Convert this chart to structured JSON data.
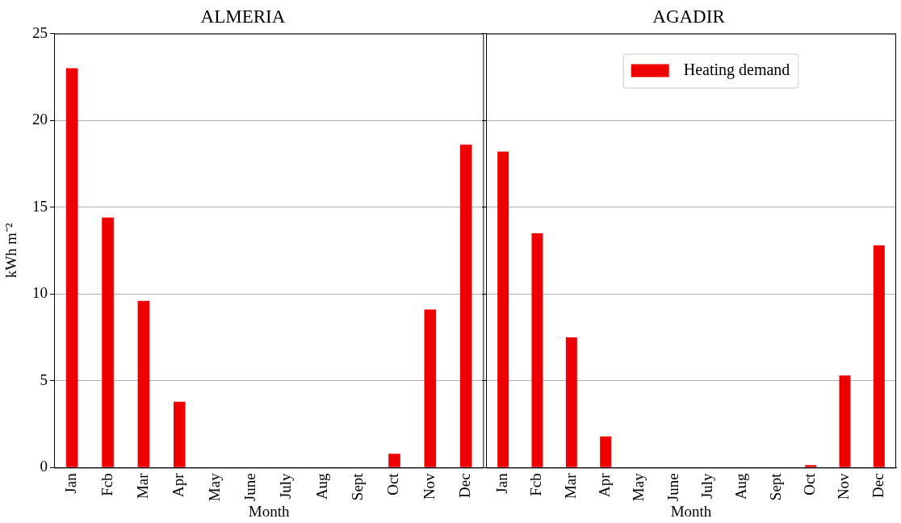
{
  "chart_data": [
    {
      "type": "bar",
      "title": "ALMERIA",
      "xlabel": "Month",
      "ylabel": "kWh m⁻²",
      "categories": [
        "Jan",
        "Fcb",
        "Mar",
        "Apr",
        "May",
        "June",
        "July",
        "Aug",
        "Sept",
        "Oct",
        "Nov",
        "Dec"
      ],
      "series": [
        {
          "color": "#ee0000",
          "values": [
            23.0,
            14.4,
            9.6,
            3.8,
            0,
            0,
            0,
            0,
            0,
            0.8,
            9.1,
            18.6
          ]
        }
      ],
      "ylim": [
        0,
        25
      ],
      "yticks": [
        0,
        5,
        10,
        15,
        20,
        25
      ],
      "grid": "y"
    },
    {
      "type": "bar",
      "title": "AGADIR",
      "xlabel": "Month",
      "categories": [
        "Jan",
        "Fcb",
        "Mar",
        "Apr",
        "May",
        "June",
        "July",
        "Aug",
        "Sept",
        "Oct",
        "Nov",
        "Dec"
      ],
      "series": [
        {
          "name": "Heating demand",
          "color": "#ee0000",
          "values": [
            18.2,
            13.5,
            7.5,
            1.8,
            0,
            0,
            0,
            0,
            0,
            0.15,
            5.3,
            12.8
          ]
        }
      ],
      "ylim": [
        0,
        25
      ],
      "yticks": [
        0,
        5,
        10,
        15,
        20,
        25
      ],
      "grid": "y",
      "legend": "top",
      "tick_labels": "x"
    }
  ]
}
